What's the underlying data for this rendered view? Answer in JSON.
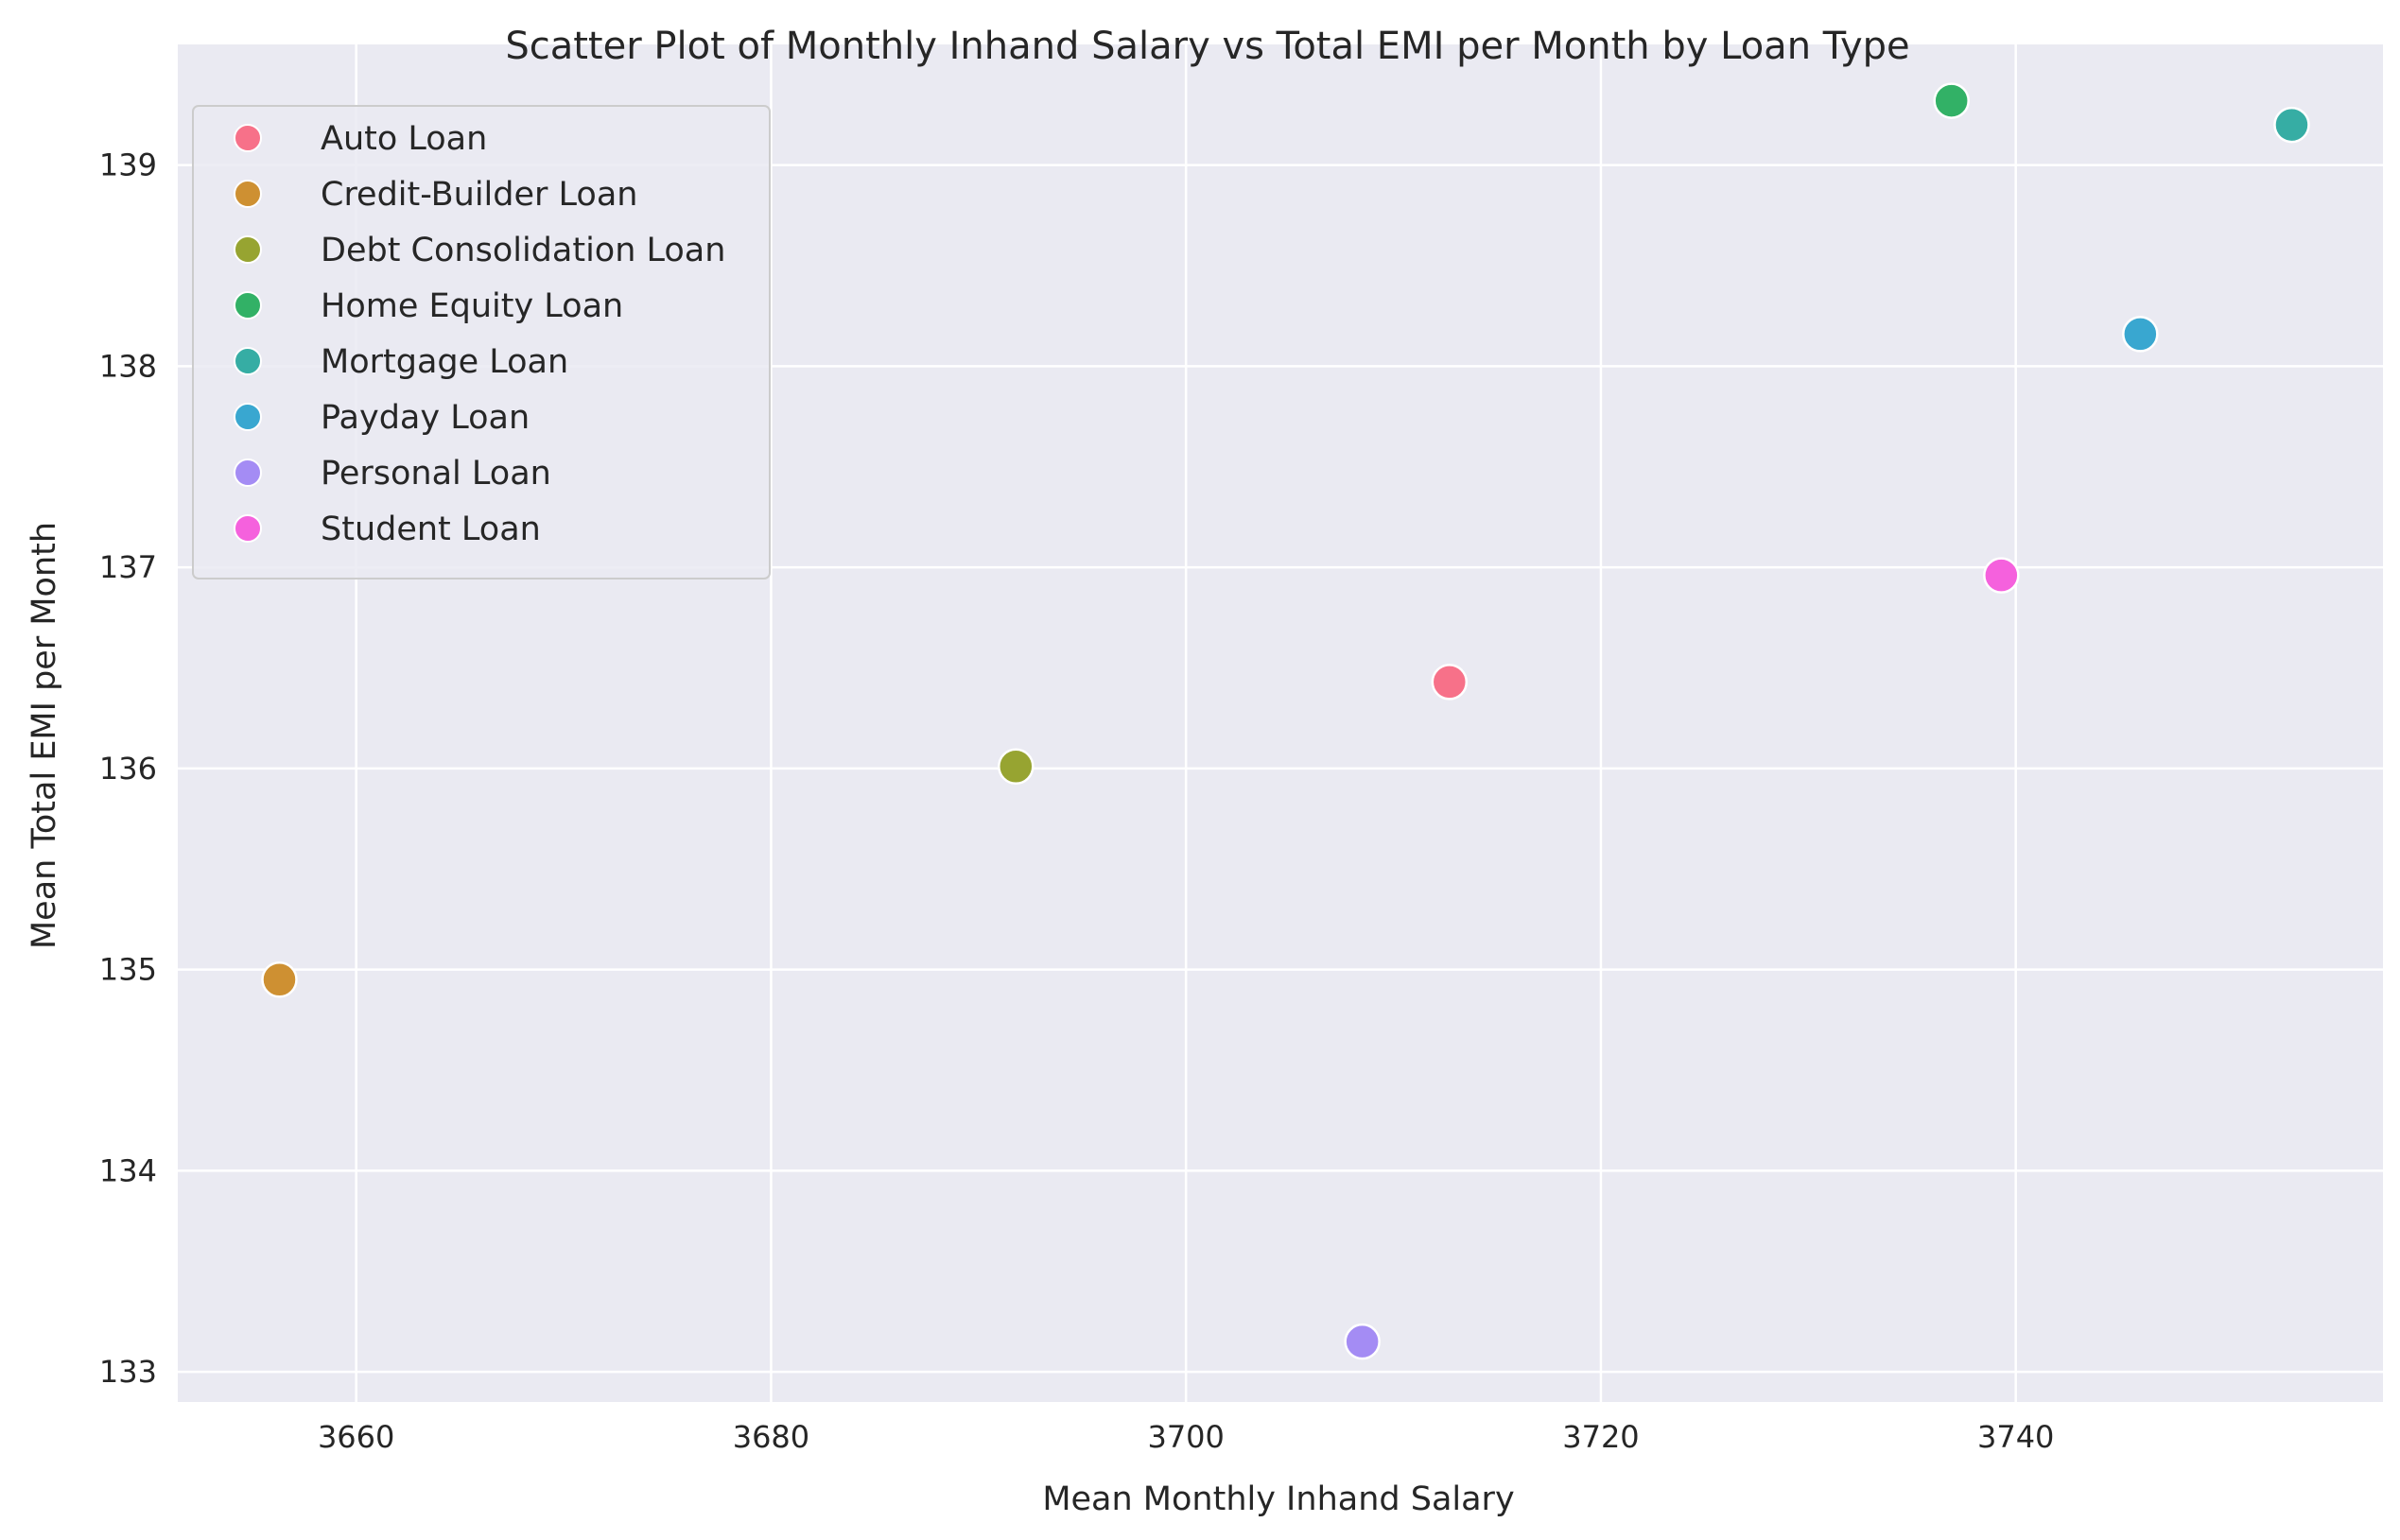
{
  "chart_data": {
    "type": "scatter",
    "title": "Scatter Plot of Monthly Inhand Salary vs Total EMI per Month by Loan Type",
    "xlabel": "Mean Monthly Inhand Salary",
    "ylabel": "Mean Total EMI per Month",
    "xlim": [
      3651.4,
      3757.7
    ],
    "ylim": [
      132.85,
      139.6
    ],
    "xticks": [
      3660,
      3680,
      3700,
      3720,
      3740
    ],
    "yticks": [
      133,
      134,
      135,
      136,
      137,
      138,
      139
    ],
    "grid": true,
    "legend_position": "top-left",
    "series": [
      {
        "name": "Auto Loan",
        "color": "#f77189",
        "x": 3712.7,
        "y": 136.43
      },
      {
        "name": "Credit-Builder Loan",
        "color": "#ce9032",
        "x": 3656.3,
        "y": 134.95
      },
      {
        "name": "Debt Consolidation Loan",
        "color": "#97a431",
        "x": 3691.8,
        "y": 136.01
      },
      {
        "name": "Home Equity Loan",
        "color": "#32b166",
        "x": 3736.9,
        "y": 139.32
      },
      {
        "name": "Mortgage Loan",
        "color": "#36ada4",
        "x": 3753.3,
        "y": 139.2
      },
      {
        "name": "Payday Loan",
        "color": "#39a7d0",
        "x": 3746.0,
        "y": 138.16
      },
      {
        "name": "Personal Loan",
        "color": "#a48cf4",
        "x": 3708.5,
        "y": 133.15
      },
      {
        "name": "Student Loan",
        "color": "#f561dd",
        "x": 3739.3,
        "y": 136.96
      }
    ]
  },
  "style": {
    "plot_background": "#eaeaf2",
    "grid_color": "#ffffff",
    "marker_edge": "#ffffff"
  }
}
